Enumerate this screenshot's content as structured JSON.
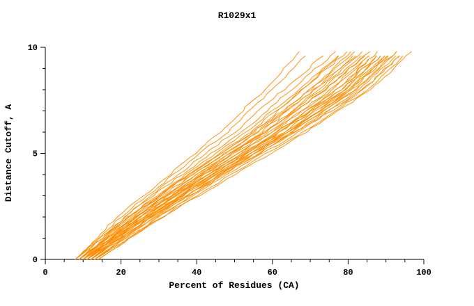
{
  "chart_data": {
    "type": "line",
    "title": "R1029x1",
    "xlabel": "Percent of Residues (CA)",
    "ylabel": "Distance Cutoff, A",
    "xlim": [
      0,
      100
    ],
    "ylim": [
      0,
      10
    ],
    "x_major_ticks": [
      0,
      20,
      40,
      60,
      80,
      100
    ],
    "x_minor_tick_step": 5,
    "y_major_ticks": [
      0,
      5,
      10
    ],
    "y_minor_tick_step": 1,
    "grid": false,
    "legend": "none",
    "line_color": "#FF8C00",
    "axis_color": "#000000",
    "curve_sample_y": [
      0,
      2,
      4,
      6,
      8,
      10
    ],
    "curves": [
      [
        8,
        22,
        38,
        55,
        68,
        80
      ],
      [
        9,
        24,
        40,
        58,
        72,
        85
      ],
      [
        10,
        25,
        42,
        60,
        75,
        88
      ],
      [
        11,
        26,
        43,
        62,
        78,
        90
      ],
      [
        12,
        28,
        45,
        64,
        80,
        92
      ],
      [
        10,
        23,
        39,
        56,
        70,
        82
      ],
      [
        9,
        21,
        36,
        52,
        65,
        78
      ],
      [
        8,
        20,
        34,
        48,
        60,
        71
      ],
      [
        8,
        19,
        33,
        46,
        58,
        68
      ],
      [
        13,
        29,
        46,
        65,
        82,
        94
      ],
      [
        14,
        30,
        48,
        67,
        84,
        96
      ],
      [
        12,
        27,
        44,
        63,
        79,
        91
      ],
      [
        11,
        25,
        41,
        59,
        74,
        87
      ],
      [
        10,
        24,
        40,
        57,
        71,
        84
      ],
      [
        9,
        23,
        38,
        54,
        68,
        81
      ],
      [
        13,
        28,
        45,
        63,
        80,
        93
      ],
      [
        12,
        26,
        43,
        61,
        77,
        89
      ],
      [
        11,
        24,
        41,
        58,
        73,
        86
      ],
      [
        10,
        22,
        37,
        53,
        67,
        80
      ],
      [
        14,
        31,
        49,
        68,
        85,
        97
      ],
      [
        12,
        27,
        45,
        64,
        81,
        93
      ],
      [
        11,
        26,
        42,
        60,
        76,
        88
      ],
      [
        10,
        25,
        41,
        58,
        74,
        87
      ],
      [
        9,
        22,
        38,
        55,
        70,
        83
      ],
      [
        13,
        30,
        47,
        66,
        83,
        95
      ],
      [
        12,
        28,
        46,
        65,
        82,
        94
      ],
      [
        11,
        27,
        44,
        62,
        78,
        90
      ],
      [
        10,
        26,
        43,
        61,
        77,
        89
      ],
      [
        9,
        24,
        39,
        56,
        71,
        85
      ],
      [
        8,
        21,
        35,
        50,
        63,
        76
      ],
      [
        12,
        29,
        47,
        66,
        84,
        96
      ],
      [
        11,
        28,
        46,
        64,
        81,
        92
      ],
      [
        10,
        27,
        44,
        62,
        79,
        91
      ],
      [
        13,
        31,
        50,
        69,
        86,
        98
      ]
    ]
  }
}
